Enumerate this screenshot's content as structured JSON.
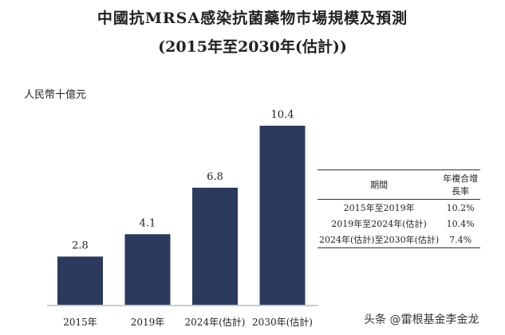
{
  "chart_data": {
    "type": "bar",
    "title": "中國抗MRSA感染抗菌藥物市場規模及預測",
    "subtitle": "(2015年至2030年(估計))",
    "ylabel": "人民幣十億元",
    "categories": [
      "2015年",
      "2019年",
      "2024年(估計)",
      "2030年(估計)"
    ],
    "values": [
      2.8,
      4.1,
      6.8,
      10.4
    ],
    "value_labels": [
      "2.8",
      "4.1",
      "6.8",
      "10.4"
    ],
    "ylim": [
      0,
      10.4
    ],
    "bar_color": "#2c3a5e",
    "grid": false,
    "table": {
      "headers": [
        "期間",
        "年複合增長率"
      ],
      "rows": [
        [
          "2015年至2019年",
          "10.2%"
        ],
        [
          "2019年至2024年(估計)",
          "10.4%"
        ],
        [
          "2024年(估計)至2030年(估計)",
          "7.4%"
        ]
      ]
    }
  },
  "watermark": "头条 @雷根基金李金龙"
}
